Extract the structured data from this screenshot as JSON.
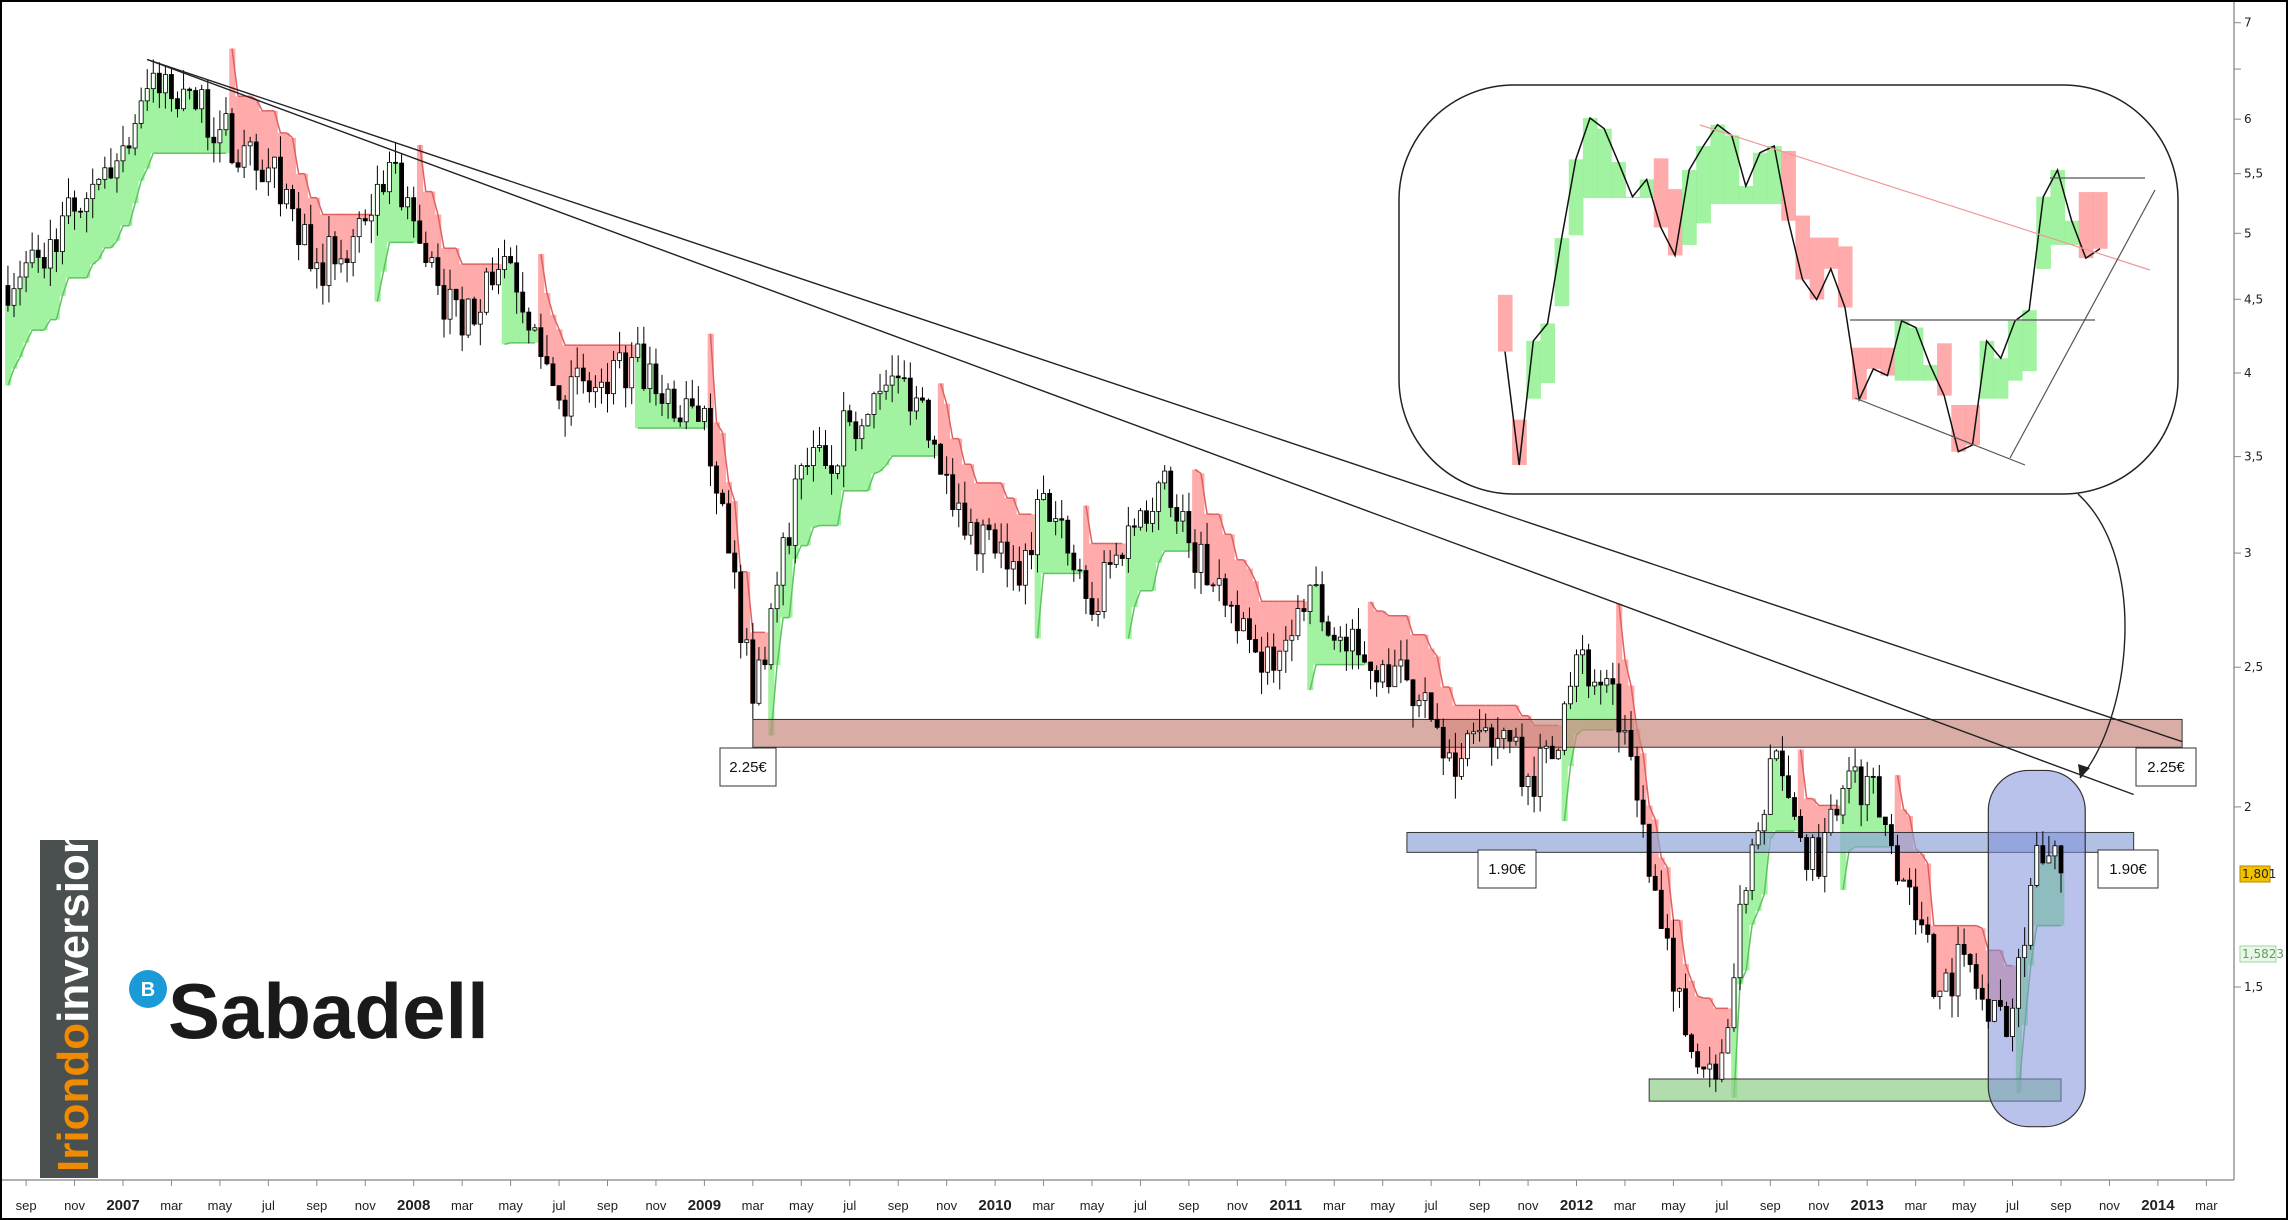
{
  "chart_data": {
    "type": "candlestick",
    "title": "",
    "y_scale": "log",
    "ylim": [
      1.05,
      7.3
    ],
    "y_ticks": [
      7,
      6.5,
      6,
      5.5,
      5,
      4.5,
      4,
      3.5,
      3,
      2.5,
      2,
      1.5
    ],
    "y_tick_labels": [
      "7",
      "",
      "6",
      "5,5",
      "5",
      "4,5",
      "4",
      "3,5",
      "3",
      "2,5",
      "2",
      "1,5"
    ],
    "x_range": [
      "2006-08",
      "2014-04"
    ],
    "x_ticks": [
      {
        "date": "2006-09",
        "label": "sep"
      },
      {
        "date": "2006-11",
        "label": "nov"
      },
      {
        "date": "2007-01",
        "label": "2007",
        "year": true
      },
      {
        "date": "2007-03",
        "label": "mar"
      },
      {
        "date": "2007-05",
        "label": "may"
      },
      {
        "date": "2007-07",
        "label": "jul"
      },
      {
        "date": "2007-09",
        "label": "sep"
      },
      {
        "date": "2007-11",
        "label": "nov"
      },
      {
        "date": "2008-01",
        "label": "2008",
        "year": true
      },
      {
        "date": "2008-03",
        "label": "mar"
      },
      {
        "date": "2008-05",
        "label": "may"
      },
      {
        "date": "2008-07",
        "label": "jul"
      },
      {
        "date": "2008-09",
        "label": "sep"
      },
      {
        "date": "2008-11",
        "label": "nov"
      },
      {
        "date": "2009-01",
        "label": "2009",
        "year": true
      },
      {
        "date": "2009-03",
        "label": "mar"
      },
      {
        "date": "2009-05",
        "label": "may"
      },
      {
        "date": "2009-07",
        "label": "jul"
      },
      {
        "date": "2009-09",
        "label": "sep"
      },
      {
        "date": "2009-11",
        "label": "nov"
      },
      {
        "date": "2010-01",
        "label": "2010",
        "year": true
      },
      {
        "date": "2010-03",
        "label": "mar"
      },
      {
        "date": "2010-05",
        "label": "may"
      },
      {
        "date": "2010-07",
        "label": "jul"
      },
      {
        "date": "2010-09",
        "label": "sep"
      },
      {
        "date": "2010-11",
        "label": "nov"
      },
      {
        "date": "2011-01",
        "label": "2011",
        "year": true
      },
      {
        "date": "2011-03",
        "label": "mar"
      },
      {
        "date": "2011-05",
        "label": "may"
      },
      {
        "date": "2011-07",
        "label": "jul"
      },
      {
        "date": "2011-09",
        "label": "sep"
      },
      {
        "date": "2011-11",
        "label": "nov"
      },
      {
        "date": "2012-01",
        "label": "2012",
        "year": true
      },
      {
        "date": "2012-03",
        "label": "mar"
      },
      {
        "date": "2012-05",
        "label": "may"
      },
      {
        "date": "2012-07",
        "label": "jul"
      },
      {
        "date": "2012-09",
        "label": "sep"
      },
      {
        "date": "2012-11",
        "label": "nov"
      },
      {
        "date": "2013-01",
        "label": "2013",
        "year": true
      },
      {
        "date": "2013-03",
        "label": "mar"
      },
      {
        "date": "2013-05",
        "label": "may"
      },
      {
        "date": "2013-07",
        "label": "jul"
      },
      {
        "date": "2013-09",
        "label": "sep"
      },
      {
        "date": "2013-11",
        "label": "nov"
      },
      {
        "date": "2014-01",
        "label": "2014",
        "year": true
      },
      {
        "date": "2014-03",
        "label": "mar"
      }
    ],
    "monthly_closes": [
      {
        "date": "2006-08",
        "close": 4.6
      },
      {
        "date": "2006-09",
        "close": 4.77
      },
      {
        "date": "2006-10",
        "close": 4.95
      },
      {
        "date": "2006-11",
        "close": 5.18
      },
      {
        "date": "2006-12",
        "close": 5.45
      },
      {
        "date": "2007-01",
        "close": 5.75
      },
      {
        "date": "2007-02",
        "close": 6.3
      },
      {
        "date": "2007-03",
        "close": 6.2
      },
      {
        "date": "2007-04",
        "close": 6.1
      },
      {
        "date": "2007-05",
        "close": 5.9
      },
      {
        "date": "2007-06",
        "close": 5.75
      },
      {
        "date": "2007-07",
        "close": 5.55
      },
      {
        "date": "2007-08",
        "close": 5.2
      },
      {
        "date": "2007-09",
        "close": 4.77
      },
      {
        "date": "2007-10",
        "close": 4.8
      },
      {
        "date": "2007-11",
        "close": 5.1
      },
      {
        "date": "2007-12",
        "close": 5.6
      },
      {
        "date": "2008-01",
        "close": 5.1
      },
      {
        "date": "2008-02",
        "close": 4.6
      },
      {
        "date": "2008-03",
        "close": 4.25
      },
      {
        "date": "2008-04",
        "close": 4.7
      },
      {
        "date": "2008-05",
        "close": 4.77
      },
      {
        "date": "2008-06",
        "close": 4.3
      },
      {
        "date": "2008-07",
        "close": 3.83
      },
      {
        "date": "2008-08",
        "close": 3.95
      },
      {
        "date": "2008-09",
        "close": 3.87
      },
      {
        "date": "2008-10",
        "close": 4.1
      },
      {
        "date": "2008-11",
        "close": 3.87
      },
      {
        "date": "2008-12",
        "close": 3.7
      },
      {
        "date": "2009-01",
        "close": 3.78
      },
      {
        "date": "2009-02",
        "close": 3.0
      },
      {
        "date": "2009-03",
        "close": 2.36
      },
      {
        "date": "2009-04",
        "close": 2.85
      },
      {
        "date": "2009-05",
        "close": 3.45
      },
      {
        "date": "2009-06",
        "close": 3.45
      },
      {
        "date": "2009-07",
        "close": 3.7
      },
      {
        "date": "2009-08",
        "close": 3.87
      },
      {
        "date": "2009-09",
        "close": 3.97
      },
      {
        "date": "2009-10",
        "close": 3.83
      },
      {
        "date": "2009-11",
        "close": 3.4
      },
      {
        "date": "2009-12",
        "close": 3.15
      },
      {
        "date": "2010-01",
        "close": 3.0
      },
      {
        "date": "2010-02",
        "close": 2.85
      },
      {
        "date": "2010-03",
        "close": 3.3
      },
      {
        "date": "2010-04",
        "close": 3.0
      },
      {
        "date": "2010-05",
        "close": 2.72
      },
      {
        "date": "2010-06",
        "close": 2.99
      },
      {
        "date": "2010-07",
        "close": 3.21
      },
      {
        "date": "2010-08",
        "close": 3.42
      },
      {
        "date": "2010-09",
        "close": 3.05
      },
      {
        "date": "2010-10",
        "close": 2.85
      },
      {
        "date": "2010-11",
        "close": 2.65
      },
      {
        "date": "2010-12",
        "close": 2.48
      },
      {
        "date": "2011-01",
        "close": 2.61
      },
      {
        "date": "2011-02",
        "close": 2.85
      },
      {
        "date": "2011-03",
        "close": 2.61
      },
      {
        "date": "2011-04",
        "close": 2.55
      },
      {
        "date": "2011-05",
        "close": 2.51
      },
      {
        "date": "2011-06",
        "close": 2.45
      },
      {
        "date": "2011-07",
        "close": 2.3
      },
      {
        "date": "2011-08",
        "close": 2.1
      },
      {
        "date": "2011-09",
        "close": 2.26
      },
      {
        "date": "2011-10",
        "close": 2.26
      },
      {
        "date": "2011-11",
        "close": 2.1
      },
      {
        "date": "2011-12",
        "close": 2.16
      },
      {
        "date": "2012-01",
        "close": 2.55
      },
      {
        "date": "2012-02",
        "close": 2.43
      },
      {
        "date": "2012-03",
        "close": 2.26
      },
      {
        "date": "2012-04",
        "close": 1.79
      },
      {
        "date": "2012-05",
        "close": 1.49
      },
      {
        "date": "2012-06",
        "close": 1.32
      },
      {
        "date": "2012-07",
        "close": 1.35
      },
      {
        "date": "2012-08",
        "close": 1.75
      },
      {
        "date": "2012-09",
        "close": 2.16
      },
      {
        "date": "2012-10",
        "close": 1.97
      },
      {
        "date": "2012-11",
        "close": 1.79
      },
      {
        "date": "2012-12",
        "close": 2.06
      },
      {
        "date": "2013-01",
        "close": 2.1
      },
      {
        "date": "2013-02",
        "close": 1.88
      },
      {
        "date": "2013-03",
        "close": 1.67
      },
      {
        "date": "2013-04",
        "close": 1.49
      },
      {
        "date": "2013-05",
        "close": 1.58
      },
      {
        "date": "2013-06",
        "close": 1.42
      },
      {
        "date": "2013-07",
        "close": 1.45
      },
      {
        "date": "2013-08",
        "close": 1.88
      },
      {
        "date": "2013-09",
        "close": 1.8
      }
    ],
    "trend_lines": [
      {
        "from": {
          "date": "2007-02",
          "price": 6.6
        },
        "to": {
          "date": "2013-12",
          "price": 2.04
        }
      },
      {
        "from": {
          "date": "2007-02",
          "price": 6.6
        },
        "to": {
          "date": "2014-02",
          "price": 2.22
        }
      }
    ],
    "zones": [
      {
        "name": "resistance-2.25",
        "from": "2009-03",
        "to": "2014-02",
        "low": 2.2,
        "high": 2.3,
        "color": "#c98a80",
        "label": "2.25€"
      },
      {
        "name": "support-1.90",
        "from": "2011-06",
        "to": "2013-12",
        "low": 1.86,
        "high": 1.92,
        "color": "#8fa6d8",
        "label": "1.90€"
      },
      {
        "name": "support-low",
        "from": "2012-04",
        "to": "2013-09",
        "low": 1.25,
        "high": 1.295,
        "color": "#8fcf88",
        "label": ""
      }
    ],
    "highlight": {
      "from": "2013-06",
      "to": "2013-10",
      "low": 1.2,
      "high": 2.12,
      "color": "#7f8fd8"
    },
    "last_price": {
      "value": "1,801",
      "color": "#f2c200"
    },
    "stop_price": {
      "value": "1,5823",
      "color": "#9fd79f"
    },
    "colors": {
      "up_fill": "#90f090",
      "down_fill": "#ff9c9c",
      "up_edge": "#5ec45e",
      "down_edge": "#e06060",
      "candle": "#000000"
    },
    "inset": {
      "closes": [
        4.25,
        3.4,
        4.33,
        4.46,
        5.1,
        5.69,
        6.0,
        5.92,
        5.67,
        5.41,
        5.54,
        5.18,
        4.97,
        5.61,
        5.79,
        5.95,
        5.87,
        5.49,
        5.74,
        5.79,
        5.23,
        4.79,
        4.64,
        4.87,
        4.58,
        3.89,
        4.12,
        4.07,
        4.48,
        4.43,
        4.15,
        3.92,
        3.5,
        3.55,
        4.33,
        4.2,
        4.48,
        4.56,
        5.41,
        5.61,
        5.23,
        4.95,
        5.02
      ]
    }
  },
  "labels": {
    "zone_225_left": "2.25€",
    "zone_225_right": "2.25€",
    "zone_190_left": "1.90€",
    "zone_190_right": "1.90€",
    "last_price": "1,801",
    "stop_price": "1,5823"
  },
  "branding": {
    "watermark_part1": "Iriondo",
    "watermark_part2": "inversiones",
    "company": "Sabadell",
    "company_logo_letter": "B",
    "company_logo_color": "#1a9ad6",
    "watermark_accent": "#f08a00"
  }
}
